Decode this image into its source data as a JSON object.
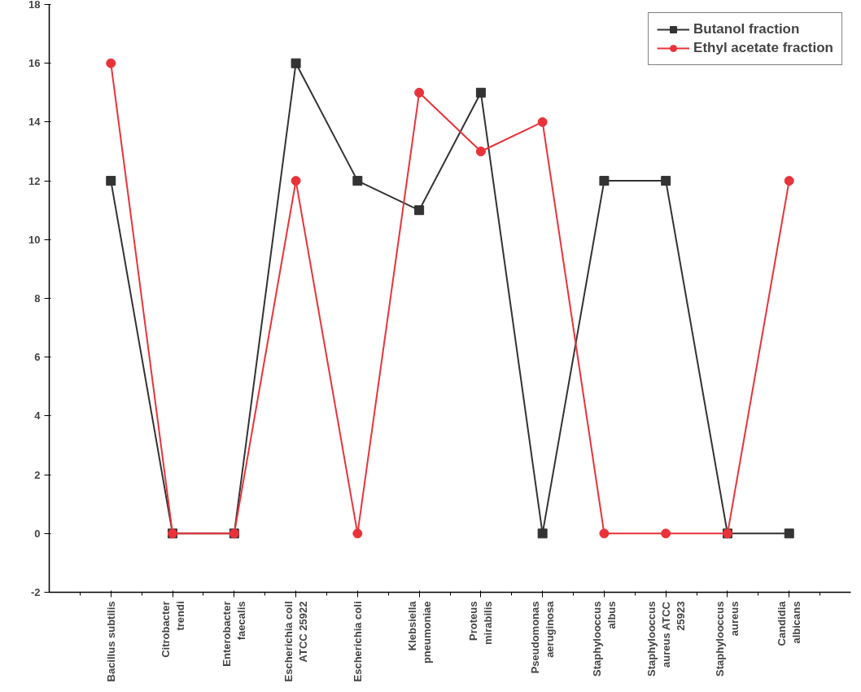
{
  "chart_data": {
    "type": "line",
    "categories": [
      "Bacillus subtilis",
      "Citrobacter\ntrendi",
      "Enterobacter\nfaecalis",
      "Escherichia coil\nATCC 25922",
      "Escherichia coli",
      "Klebsiella\npneumoniae",
      "Proteus\nmirabilis",
      "Pseudomonas\naeruginosa",
      "Staphylooccus\nalbus",
      "Staphylooccus\naureus ATCC\n25923",
      "Staphylooccus\naureus",
      "Candidia\nalbicans"
    ],
    "series": [
      {
        "name": "Butanol fraction",
        "color": "#333333",
        "marker": "square",
        "values": [
          12,
          0,
          0,
          16,
          12,
          11,
          15,
          0,
          12,
          12,
          0,
          0
        ]
      },
      {
        "name": "Ethyl acetate fraction",
        "color": "#e8333a",
        "marker": "circle",
        "values": [
          16,
          0,
          0,
          12,
          0,
          15,
          13,
          14,
          0,
          0,
          0,
          12
        ]
      }
    ],
    "ylim": [
      -2,
      18
    ],
    "yticks": [
      -2,
      0,
      2,
      4,
      6,
      8,
      10,
      12,
      14,
      16,
      18
    ],
    "grid": false,
    "legend": "top right",
    "line_style": "solid"
  }
}
